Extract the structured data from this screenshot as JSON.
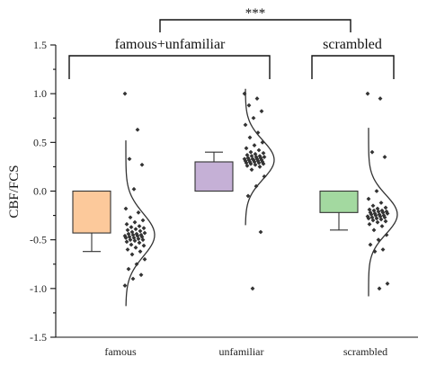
{
  "chart_data": {
    "type": "box",
    "ylabel": "CBF/FCS",
    "ylim": [
      -1.5,
      1.5
    ],
    "yticks": [
      "1.5",
      "1.0",
      "0.5",
      "0.0",
      "-0.5",
      "-1.0",
      "-1.5"
    ],
    "grid": false,
    "categories": [
      {
        "label": "famous",
        "color": "#fcc99b",
        "box": {
          "q1": -0.43,
          "q3": 0.0
        },
        "whisker": {
          "low": -0.62
        },
        "curve": {
          "mean": -0.45,
          "sd": 0.22,
          "ymin": -1.18,
          "ymax": 0.52
        },
        "points": [
          1.0,
          0.63,
          0.33,
          0.27,
          0.02,
          -0.18,
          -0.22,
          -0.27,
          -0.3,
          -0.32,
          -0.34,
          -0.36,
          -0.37,
          -0.38,
          -0.39,
          -0.4,
          -0.41,
          -0.42,
          -0.43,
          -0.44,
          -0.44,
          -0.45,
          -0.45,
          -0.46,
          -0.46,
          -0.47,
          -0.47,
          -0.48,
          -0.48,
          -0.49,
          -0.5,
          -0.5,
          -0.51,
          -0.52,
          -0.53,
          -0.55,
          -0.56,
          -0.58,
          -0.6,
          -0.62,
          -0.65,
          -0.7,
          -0.75,
          -0.8,
          -0.86,
          -0.9,
          -0.97
        ]
      },
      {
        "label": "unfamiliar",
        "color": "#c5b0d6",
        "box": {
          "q1": 0.0,
          "q3": 0.3
        },
        "whisker": {
          "high": 0.4
        },
        "curve": {
          "mean": 0.32,
          "sd": 0.2,
          "ymin": -0.35,
          "ymax": 1.05
        },
        "points": [
          1.0,
          0.95,
          0.88,
          0.82,
          0.75,
          0.68,
          0.6,
          0.55,
          0.5,
          0.47,
          0.44,
          0.42,
          0.4,
          0.39,
          0.38,
          0.37,
          0.36,
          0.36,
          0.35,
          0.35,
          0.34,
          0.34,
          0.33,
          0.33,
          0.33,
          0.32,
          0.32,
          0.32,
          0.31,
          0.31,
          0.3,
          0.3,
          0.3,
          0.29,
          0.29,
          0.28,
          0.28,
          0.27,
          0.26,
          0.25,
          0.22,
          0.15,
          0.05,
          -0.05,
          -0.42,
          -1.0
        ]
      },
      {
        "label": "scrambled",
        "color": "#a3d9a0",
        "box": {
          "q1": -0.22,
          "q3": 0.0
        },
        "whisker": {
          "low": -0.4
        },
        "curve": {
          "mean": -0.24,
          "sd": 0.2,
          "ymin": -1.08,
          "ymax": 0.65
        },
        "points": [
          1.0,
          0.95,
          0.4,
          0.35,
          0.0,
          -0.08,
          -0.12,
          -0.15,
          -0.17,
          -0.18,
          -0.19,
          -0.2,
          -0.2,
          -0.21,
          -0.21,
          -0.22,
          -0.22,
          -0.23,
          -0.23,
          -0.24,
          -0.24,
          -0.25,
          -0.25,
          -0.26,
          -0.26,
          -0.27,
          -0.27,
          -0.28,
          -0.28,
          -0.29,
          -0.3,
          -0.31,
          -0.32,
          -0.34,
          -0.36,
          -0.4,
          -0.45,
          -0.5,
          -0.55,
          -0.6,
          -0.62,
          -0.95,
          -1.0
        ]
      }
    ],
    "annotations": {
      "group_left": "famous+unfamiliar",
      "group_right": "scrambled",
      "significance": "***"
    }
  }
}
